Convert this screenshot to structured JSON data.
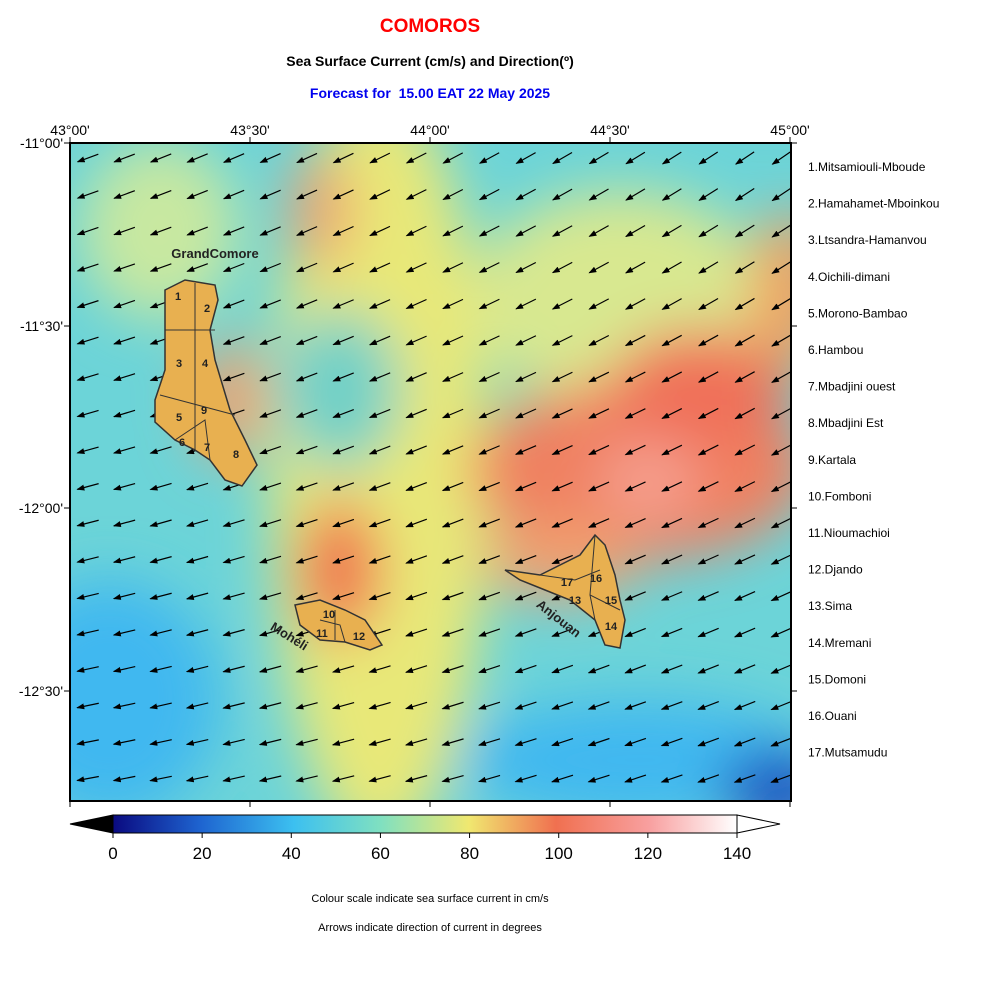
{
  "header": {
    "title": "COMOROS",
    "subtitle": "Sea Surface Current (cm/s) and Direction(º)",
    "forecast": "Forecast for  15.00 EAT 22 May 2025"
  },
  "map": {
    "lon_labels": [
      "43°00'",
      "43°30'",
      "44°00'",
      "44°30'",
      "45°00'"
    ],
    "lat_labels": [
      "-11°00'",
      "-11°30'",
      "-12°00'",
      "-12°30'"
    ],
    "island_names": [
      "GrandComore",
      "Mohéli",
      "Anjouan"
    ],
    "region_numbers": [
      "1",
      "2",
      "3",
      "4",
      "5",
      "6",
      "7",
      "8",
      "9",
      "10",
      "11",
      "12",
      "13",
      "14",
      "15",
      "16",
      "17"
    ]
  },
  "legend": [
    "1.Mitsamiouli-Mboude",
    "2.Hamahamet-Mboinkou",
    "3.Ltsandra-Hamanvou",
    "4.Oichili-dimani",
    "5.Morono-Bambao",
    "6.Hambou",
    "7.Mbadjini ouest",
    "8.Mbadjini Est",
    "9.Kartala",
    "10.Fomboni",
    "11.Nioumachioi",
    "12.Djando",
    "13.Sima",
    "14.Mremani",
    "15.Domoni",
    "16.Ouani",
    "17.Mutsamudu"
  ],
  "colorbar": {
    "ticks": [
      0,
      20,
      40,
      60,
      80,
      100,
      120,
      140
    ]
  },
  "notes": [
    "Colour scale indicate sea surface current in cm/s",
    "Arrows indicate direction of current in degrees"
  ]
}
